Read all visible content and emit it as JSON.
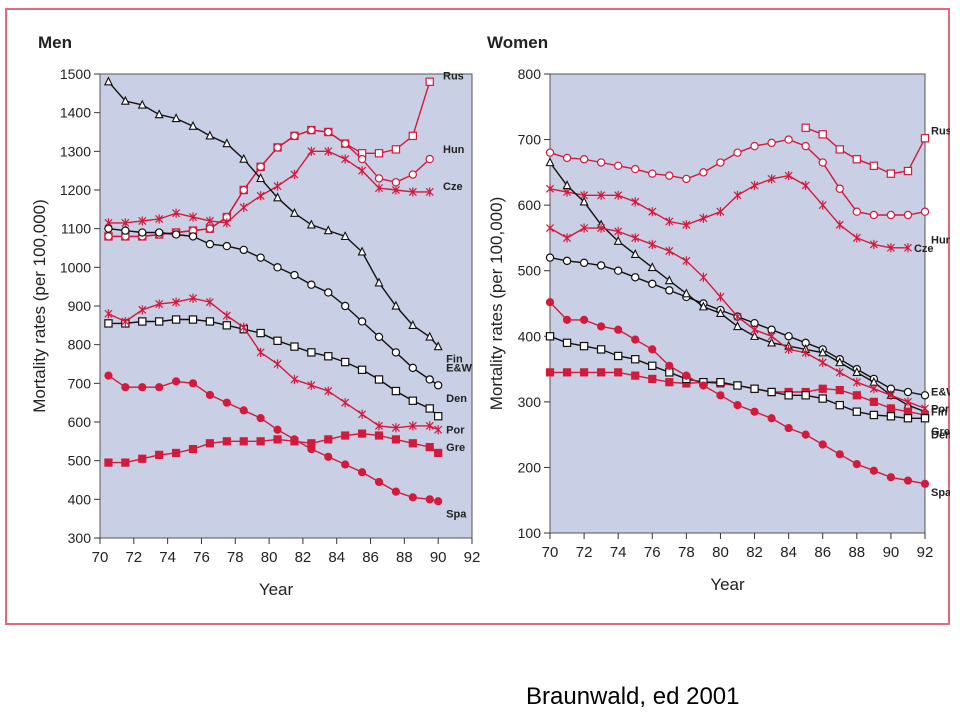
{
  "credit": "Braunwald, ed 2001",
  "colors": {
    "frame": "#e06a7e",
    "plot_bg": "#c9cfe4",
    "black": "#111111",
    "red": "#d21a3c"
  },
  "chart_data": [
    {
      "type": "line",
      "title": "Men",
      "xlabel": "Year",
      "ylabel": "Mortality rates (per 100,000)",
      "xlim": [
        70,
        92
      ],
      "ylim": [
        300,
        1500
      ],
      "xticks": [
        "70",
        "72",
        "74",
        "76",
        "78",
        "80",
        "82",
        "84",
        "86",
        "88",
        "90",
        "92"
      ],
      "yticks": [
        "300",
        "400",
        "500",
        "600",
        "700",
        "800",
        "900",
        "1000",
        "1100",
        "1200",
        "1300",
        "1400",
        "1500"
      ],
      "grid": false,
      "legend": "labels at line ends",
      "series": [
        {
          "name": "Rus",
          "color": "red",
          "marker": "square-open",
          "x": [
            70.5,
            71.5,
            72.5,
            73.5,
            74.5,
            75.5,
            76.5,
            77.5,
            78.5,
            79.5,
            80.5,
            81.5,
            82.5,
            83.5,
            84.5,
            85.5,
            86.5,
            87.5,
            88.5,
            89.5
          ],
          "y": [
            1080,
            1080,
            1080,
            1085,
            1090,
            1095,
            1100,
            1130,
            1200,
            1260,
            1310,
            1340,
            1355,
            1350,
            1320,
            1295,
            1295,
            1305,
            1340,
            1480
          ]
        },
        {
          "name": "Hun",
          "color": "red",
          "marker": "circle-open",
          "x": [
            70.5,
            71.5,
            72.5,
            73.5,
            74.5,
            75.5,
            76.5,
            77.5,
            78.5,
            79.5,
            80.5,
            81.5,
            82.5,
            83.5,
            84.5,
            85.5,
            86.5,
            87.5,
            88.5,
            89.5
          ],
          "y": [
            1080,
            1080,
            1080,
            1085,
            1090,
            1095,
            1100,
            1130,
            1200,
            1260,
            1310,
            1340,
            1355,
            1350,
            1320,
            1280,
            1230,
            1220,
            1240,
            1280
          ]
        },
        {
          "name": "Cze",
          "color": "red",
          "marker": "star",
          "x": [
            70.5,
            71.5,
            72.5,
            73.5,
            74.5,
            75.5,
            76.5,
            77.5,
            78.5,
            79.5,
            80.5,
            81.5,
            82.5,
            83.5,
            84.5,
            85.5,
            86.5,
            87.5,
            88.5,
            89.5
          ],
          "y": [
            1115,
            1115,
            1120,
            1125,
            1140,
            1130,
            1120,
            1115,
            1155,
            1185,
            1210,
            1240,
            1300,
            1300,
            1280,
            1250,
            1205,
            1200,
            1195,
            1195
          ]
        },
        {
          "name": "Fin",
          "color": "black",
          "marker": "triangle-open",
          "x": [
            70.5,
            71.5,
            72.5,
            73.5,
            74.5,
            75.5,
            76.5,
            77.5,
            78.5,
            79.5,
            80.5,
            81.5,
            82.5,
            83.5,
            84.5,
            85.5,
            86.5,
            87.5,
            88.5,
            89.5,
            90.0
          ],
          "y": [
            1480,
            1430,
            1420,
            1395,
            1385,
            1365,
            1340,
            1320,
            1280,
            1230,
            1180,
            1140,
            1110,
            1095,
            1080,
            1040,
            960,
            900,
            850,
            820,
            795
          ]
        },
        {
          "name": "E&W",
          "color": "black",
          "marker": "circle-open",
          "x": [
            70.5,
            71.5,
            72.5,
            73.5,
            74.5,
            75.5,
            76.5,
            77.5,
            78.5,
            79.5,
            80.5,
            81.5,
            82.5,
            83.5,
            84.5,
            85.5,
            86.5,
            87.5,
            88.5,
            89.5,
            90.0
          ],
          "y": [
            1100,
            1095,
            1090,
            1090,
            1085,
            1080,
            1060,
            1055,
            1045,
            1025,
            1000,
            980,
            955,
            935,
            900,
            860,
            820,
            780,
            740,
            710,
            695
          ]
        },
        {
          "name": "Den",
          "color": "black",
          "marker": "square-open",
          "x": [
            70.5,
            71.5,
            72.5,
            73.5,
            74.5,
            75.5,
            76.5,
            77.5,
            78.5,
            79.5,
            80.5,
            81.5,
            82.5,
            83.5,
            84.5,
            85.5,
            86.5,
            87.5,
            88.5,
            89.5,
            90.0
          ],
          "y": [
            855,
            855,
            860,
            860,
            865,
            865,
            860,
            850,
            840,
            830,
            810,
            795,
            780,
            770,
            755,
            735,
            710,
            680,
            655,
            635,
            615
          ]
        },
        {
          "name": "Por",
          "color": "red",
          "marker": "star",
          "x": [
            70.5,
            71.5,
            72.5,
            73.5,
            74.5,
            75.5,
            76.5,
            77.5,
            78.5,
            79.5,
            80.5,
            81.5,
            82.5,
            83.5,
            84.5,
            85.5,
            86.5,
            87.5,
            88.5,
            89.5,
            90.0
          ],
          "y": [
            880,
            860,
            890,
            905,
            910,
            920,
            910,
            875,
            845,
            780,
            750,
            710,
            695,
            680,
            650,
            620,
            590,
            585,
            590,
            590,
            580
          ]
        },
        {
          "name": "Gre",
          "color": "red",
          "marker": "square-filled",
          "x": [
            70.5,
            71.5,
            72.5,
            73.5,
            74.5,
            75.5,
            76.5,
            77.5,
            78.5,
            79.5,
            80.5,
            81.5,
            82.5,
            83.5,
            84.5,
            85.5,
            86.5,
            87.5,
            88.5,
            89.5,
            90.0
          ],
          "y": [
            495,
            495,
            505,
            515,
            520,
            530,
            545,
            550,
            550,
            550,
            555,
            550,
            545,
            555,
            565,
            570,
            565,
            555,
            545,
            535,
            520
          ]
        },
        {
          "name": "Spa",
          "color": "red",
          "marker": "circle-filled",
          "x": [
            70.5,
            71.5,
            72.5,
            73.5,
            74.5,
            75.5,
            76.5,
            77.5,
            78.5,
            79.5,
            80.5,
            81.5,
            82.5,
            83.5,
            84.5,
            85.5,
            86.5,
            87.5,
            88.5,
            89.5,
            90.0
          ],
          "y": [
            720,
            690,
            690,
            690,
            705,
            700,
            670,
            650,
            630,
            610,
            580,
            555,
            530,
            510,
            490,
            470,
            445,
            420,
            405,
            400,
            395
          ]
        }
      ]
    },
    {
      "type": "line",
      "title": "Women",
      "xlabel": "Year",
      "ylabel": "Mortality rates (per 100,000)",
      "xlim": [
        70,
        92
      ],
      "ylim": [
        100,
        800
      ],
      "xticks": [
        "70",
        "72",
        "74",
        "76",
        "78",
        "80",
        "82",
        "84",
        "86",
        "88",
        "90",
        "92"
      ],
      "yticks": [
        "100",
        "200",
        "300",
        "400",
        "500",
        "600",
        "700",
        "800"
      ],
      "grid": false,
      "legend": "labels at line ends",
      "series": [
        {
          "name": "Rus",
          "color": "red",
          "marker": "square-open",
          "x": [
            85,
            86,
            87,
            88,
            89,
            90,
            91,
            92
          ],
          "y": [
            718,
            708,
            685,
            670,
            660,
            648,
            652,
            702
          ]
        },
        {
          "name": "Hun",
          "color": "red",
          "marker": "circle-open",
          "x": [
            70,
            71,
            72,
            73,
            74,
            75,
            76,
            77,
            78,
            79,
            80,
            81,
            82,
            83,
            84,
            85,
            86,
            87,
            88,
            89,
            90,
            91,
            92
          ],
          "y": [
            680,
            672,
            670,
            665,
            660,
            655,
            648,
            645,
            640,
            650,
            665,
            680,
            690,
            695,
            700,
            690,
            665,
            625,
            590,
            585,
            585,
            585,
            590
          ]
        },
        {
          "name": "Cze",
          "color": "red",
          "marker": "star",
          "x": [
            70,
            71,
            72,
            73,
            74,
            75,
            76,
            77,
            78,
            79,
            80,
            81,
            82,
            83,
            84,
            85,
            86,
            87,
            88,
            89,
            90,
            91
          ],
          "y": [
            625,
            620,
            615,
            615,
            615,
            605,
            590,
            575,
            570,
            580,
            590,
            615,
            630,
            640,
            645,
            630,
            600,
            570,
            550,
            540,
            535,
            535
          ]
        },
        {
          "name": "E&W",
          "color": "black",
          "marker": "circle-open",
          "x": [
            70,
            71,
            72,
            73,
            74,
            75,
            76,
            77,
            78,
            79,
            80,
            81,
            82,
            83,
            84,
            85,
            86,
            87,
            88,
            89,
            90,
            91,
            92
          ],
          "y": [
            520,
            515,
            512,
            508,
            500,
            490,
            480,
            470,
            460,
            450,
            440,
            430,
            420,
            410,
            400,
            390,
            380,
            365,
            350,
            335,
            320,
            315,
            310
          ]
        },
        {
          "name": "Fin",
          "color": "black",
          "marker": "triangle-open",
          "x": [
            70,
            71,
            72,
            73,
            74,
            75,
            76,
            77,
            78,
            79,
            80,
            81,
            82,
            83,
            84,
            85,
            86,
            87,
            88,
            89,
            90,
            91,
            92
          ],
          "y": [
            665,
            630,
            605,
            570,
            545,
            525,
            505,
            485,
            465,
            445,
            435,
            415,
            400,
            390,
            385,
            380,
            375,
            360,
            345,
            330,
            310,
            295,
            285
          ]
        },
        {
          "name": "Por",
          "color": "red",
          "marker": "star",
          "x": [
            70,
            71,
            72,
            73,
            74,
            75,
            76,
            77,
            78,
            79,
            80,
            81,
            82,
            83,
            84,
            85,
            86,
            87,
            88,
            89,
            90,
            91,
            92
          ],
          "y": [
            565,
            550,
            565,
            565,
            560,
            550,
            540,
            530,
            515,
            490,
            460,
            430,
            410,
            400,
            380,
            375,
            360,
            345,
            330,
            320,
            310,
            300,
            290
          ]
        },
        {
          "name": "Gre",
          "color": "red",
          "marker": "square-filled",
          "x": [
            70,
            71,
            72,
            73,
            74,
            75,
            76,
            77,
            78,
            79,
            80,
            81,
            82,
            83,
            84,
            85,
            86,
            87,
            88,
            89,
            90,
            91,
            92
          ],
          "y": [
            345,
            345,
            345,
            345,
            345,
            340,
            335,
            330,
            328,
            330,
            328,
            325,
            320,
            315,
            315,
            315,
            320,
            318,
            310,
            300,
            290,
            285,
            280
          ]
        },
        {
          "name": "Den",
          "color": "black",
          "marker": "square-open",
          "x": [
            70,
            71,
            72,
            73,
            74,
            75,
            76,
            77,
            78,
            79,
            80,
            81,
            82,
            83,
            84,
            85,
            86,
            87,
            88,
            89,
            90,
            91,
            92
          ],
          "y": [
            400,
            390,
            385,
            380,
            370,
            365,
            355,
            345,
            335,
            330,
            330,
            325,
            320,
            315,
            310,
            310,
            305,
            295,
            285,
            280,
            278,
            275,
            275
          ]
        },
        {
          "name": "Spa",
          "color": "red",
          "marker": "circle-filled",
          "x": [
            70,
            71,
            72,
            73,
            74,
            75,
            76,
            77,
            78,
            79,
            80,
            81,
            82,
            83,
            84,
            85,
            86,
            87,
            88,
            89,
            90,
            91,
            92
          ],
          "y": [
            452,
            425,
            425,
            415,
            410,
            395,
            380,
            355,
            340,
            325,
            310,
            295,
            285,
            275,
            260,
            250,
            235,
            220,
            205,
            195,
            185,
            180,
            175
          ]
        }
      ]
    }
  ]
}
